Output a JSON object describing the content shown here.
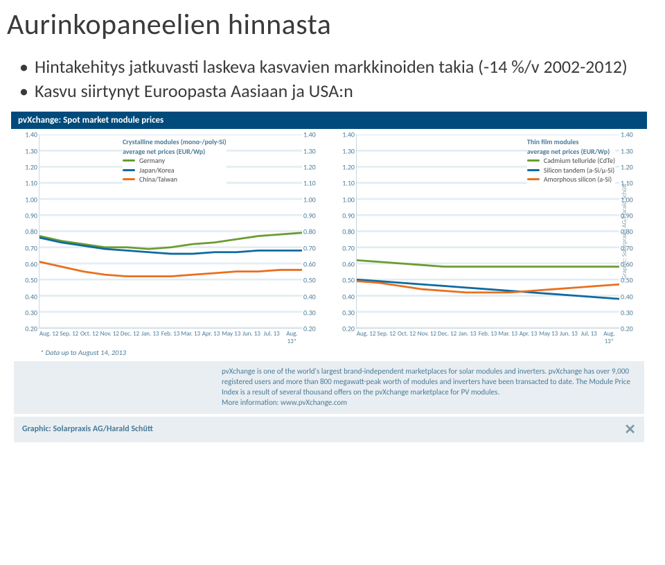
{
  "title": "Aurinkopaneelien hinnasta",
  "bullets": [
    "Hintakehitys jatkuvasti laskeva kasvavien markkinoiden takia (-14 %/v 2002-2012)",
    "Kasvu siirtynyt Euroopasta Aasiaan ja USA:n"
  ],
  "figure": {
    "titlebar": "pvXchange: Spot market module prices",
    "ylim": [
      0.2,
      1.4
    ],
    "ytick_step": 0.1,
    "yticks": [
      "1.40",
      "1.30",
      "1.20",
      "1.10",
      "1.00",
      "0.90",
      "0.80",
      "0.70",
      "0.60",
      "0.50",
      "0.40",
      "0.30",
      "0.20"
    ],
    "xlabels": [
      "Aug. 12",
      "Sep. 12",
      "Oct. 12",
      "Nov. 12",
      "Dec. 12",
      "Jan. 13",
      "Feb. 13",
      "Mar. 13",
      "Apr. 13",
      "May 13",
      "Jun. 13",
      "Jul. 13",
      "Aug. 13*"
    ],
    "grid_color": "#e4edf1",
    "background": "#ffffff",
    "stroke_width": 2.8,
    "left_panel": {
      "legend_title1": "Crystalline modules (mono-/poly-Si)",
      "legend_title2": "average net prices (EUR/Wp)",
      "legend_pos": "top-center",
      "series": [
        {
          "name": "Germany",
          "color": "#6a9c2f",
          "values": [
            0.77,
            0.74,
            0.72,
            0.7,
            0.7,
            0.69,
            0.7,
            0.72,
            0.73,
            0.75,
            0.77,
            0.78,
            0.79
          ]
        },
        {
          "name": "Japan/Korea",
          "color": "#0e6aa1",
          "values": [
            0.76,
            0.73,
            0.71,
            0.69,
            0.68,
            0.67,
            0.66,
            0.66,
            0.67,
            0.67,
            0.68,
            0.68,
            0.68
          ]
        },
        {
          "name": "China/Taiwan",
          "color": "#e86f1f",
          "values": [
            0.61,
            0.58,
            0.55,
            0.53,
            0.52,
            0.52,
            0.52,
            0.53,
            0.54,
            0.55,
            0.55,
            0.56,
            0.56
          ]
        }
      ]
    },
    "right_panel": {
      "legend_title1": "Thin film modules",
      "legend_title2": "average net prices (EUR/Wp)",
      "legend_pos": "top-right",
      "series": [
        {
          "name": "Cadmium telluride (CdTe)",
          "color": "#6a9c2f",
          "values": [
            0.62,
            0.61,
            0.6,
            0.59,
            0.58,
            0.58,
            0.58,
            0.58,
            0.58,
            0.58,
            0.58,
            0.58,
            0.58
          ]
        },
        {
          "name": "Silicon tandem (a-Si/µ-Si)",
          "color": "#0e6aa1",
          "values": [
            0.5,
            0.49,
            0.48,
            0.47,
            0.46,
            0.45,
            0.44,
            0.43,
            0.42,
            0.41,
            0.4,
            0.39,
            0.38
          ]
        },
        {
          "name": "Amorphous silicon (a-Si)",
          "color": "#e86f1f",
          "values": [
            0.49,
            0.48,
            0.46,
            0.44,
            0.43,
            0.42,
            0.42,
            0.42,
            0.43,
            0.44,
            0.45,
            0.46,
            0.47
          ]
        }
      ]
    },
    "attrib": "Graphic: Solarpraxis AG/Harald Schütt",
    "footnote": "* Data up to August 14, 2013",
    "description": "pvXchange is one of the world's largest brand-independent marketplaces for solar modules and inverters. pvXchange has over 9,000 registered users and more than 800 megawatt-peak worth of modules and inverters have been transacted to date. The Module Price Index is a result of several thousand offers on the pvXchange marketplace for PV modules.",
    "more_info": "More information: www.pvXchange.com",
    "credit": "Graphic: Solarpraxis AG/Harald Schütt"
  }
}
